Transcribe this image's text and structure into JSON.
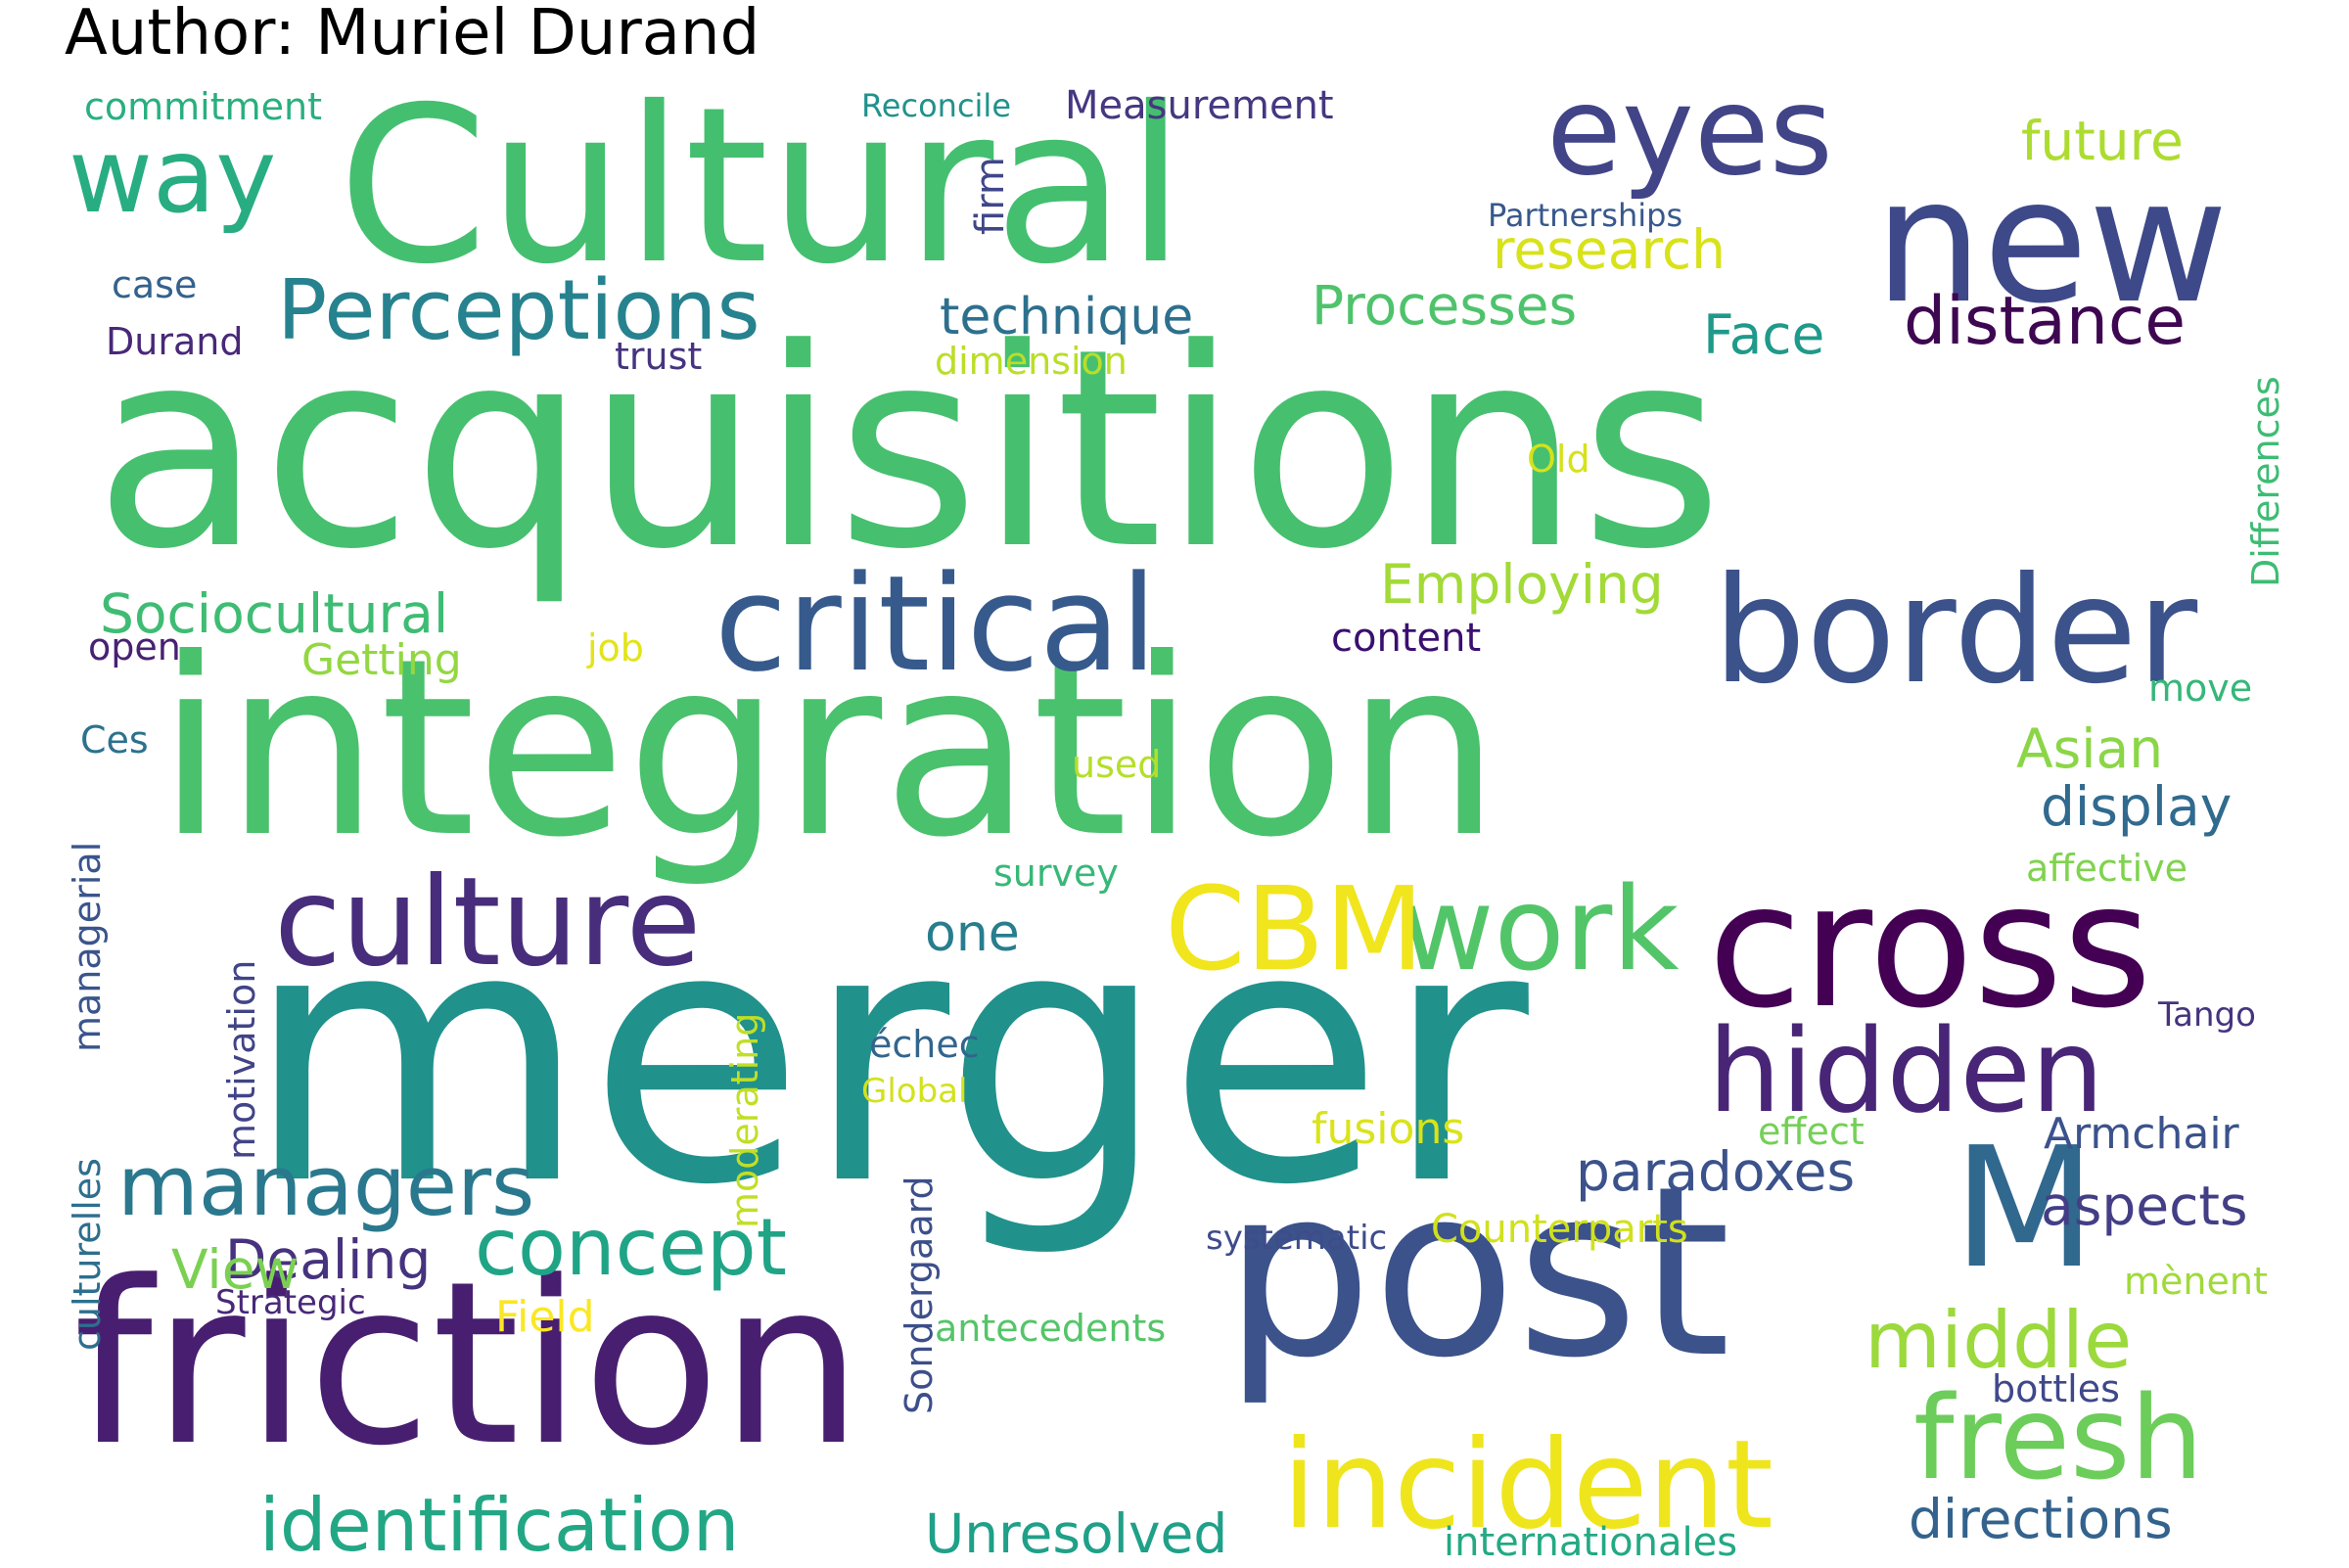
{
  "title": "Author: Muriel Durand",
  "words": [
    {
      "text": "acquisitions",
      "color": "#46c06f"
    },
    {
      "text": "merger",
      "color": "#21918c"
    },
    {
      "text": "integration",
      "color": "#4ac16d"
    },
    {
      "text": "Cultural",
      "color": "#44bf70"
    },
    {
      "text": "friction",
      "color": "#481f70"
    },
    {
      "text": "post",
      "color": "#3b528b"
    },
    {
      "text": "cross",
      "color": "#440154"
    },
    {
      "text": "new",
      "color": "#3e4989"
    },
    {
      "text": "border",
      "color": "#3b528b"
    },
    {
      "text": "eyes",
      "color": "#414487"
    },
    {
      "text": "critical",
      "color": "#375a8c"
    },
    {
      "text": "culture",
      "color": "#472d7b"
    },
    {
      "text": "M",
      "color": "#31688e"
    },
    {
      "text": "work",
      "color": "#52c569"
    },
    {
      "text": "CBM",
      "color": "#f1e51d"
    },
    {
      "text": "hidden",
      "color": "#482576"
    },
    {
      "text": "incident",
      "color": "#efe51c"
    },
    {
      "text": "fresh",
      "color": "#6ccd5a"
    },
    {
      "text": "way",
      "color": "#27ad81"
    },
    {
      "text": "Perceptions",
      "color": "#26828e"
    },
    {
      "text": "managers",
      "color": "#2a788e"
    },
    {
      "text": "concept",
      "color": "#20a486"
    },
    {
      "text": "identification",
      "color": "#22a785"
    },
    {
      "text": "middle",
      "color": "#9bd93c"
    },
    {
      "text": "distance",
      "color": "#3e0751"
    },
    {
      "text": "paradoxes",
      "color": "#3b528b"
    },
    {
      "text": "directions",
      "color": "#33638d"
    },
    {
      "text": "Unresolved",
      "color": "#1fa088"
    },
    {
      "text": "Sociocultural",
      "color": "#3fbc73"
    },
    {
      "text": "Employing",
      "color": "#a2da37"
    },
    {
      "text": "technique",
      "color": "#2d708e"
    },
    {
      "text": "Processes",
      "color": "#4ec36b"
    },
    {
      "text": "research",
      "color": "#d8e219"
    },
    {
      "text": "future",
      "color": "#addc30"
    },
    {
      "text": "Face",
      "color": "#1f9a8a"
    },
    {
      "text": "Asian",
      "color": "#8bd646"
    },
    {
      "text": "display",
      "color": "#306a8e"
    },
    {
      "text": "aspects",
      "color": "#433e85"
    },
    {
      "text": "Dealing",
      "color": "#46327e"
    },
    {
      "text": "View",
      "color": "#7ad151"
    },
    {
      "text": "one",
      "color": "#287d8e"
    },
    {
      "text": "Measurement",
      "color": "#453781"
    },
    {
      "text": "commitment",
      "color": "#29af7f"
    },
    {
      "text": "Reconcile",
      "color": "#20928c"
    },
    {
      "text": "firm",
      "color": "#3f4788"
    },
    {
      "text": "Partnerships",
      "color": "#38588c"
    },
    {
      "text": "case",
      "color": "#33628d"
    },
    {
      "text": "Durand",
      "color": "#482878"
    },
    {
      "text": "trust",
      "color": "#463480"
    },
    {
      "text": "dimension",
      "color": "#bade28"
    },
    {
      "text": "Old",
      "color": "#d5e21a"
    },
    {
      "text": "Differences",
      "color": "#3dbc74"
    },
    {
      "text": "open",
      "color": "#482173"
    },
    {
      "text": "Getting",
      "color": "#93d741"
    },
    {
      "text": "job",
      "color": "#e2e418"
    },
    {
      "text": "content",
      "color": "#3b0f70"
    },
    {
      "text": "move",
      "color": "#35b779"
    },
    {
      "text": "Ces",
      "color": "#2c728e"
    },
    {
      "text": "used",
      "color": "#b5de2b"
    },
    {
      "text": "survey",
      "color": "#37b878"
    },
    {
      "text": "affective",
      "color": "#7fd34e"
    },
    {
      "text": "managerial",
      "color": "#3a548c"
    },
    {
      "text": "motivation",
      "color": "#414487"
    },
    {
      "text": "culturelles",
      "color": "#2e6e8e"
    },
    {
      "text": "moderating",
      "color": "#c0df25"
    },
    {
      "text": "échec",
      "color": "#32658e"
    },
    {
      "text": "Global",
      "color": "#d2e21b"
    },
    {
      "text": "Sondergaard",
      "color": "#3c4f8a"
    },
    {
      "text": "Tango",
      "color": "#46337f"
    },
    {
      "text": "Armchair",
      "color": "#3b528b"
    },
    {
      "text": "effect",
      "color": "#73d056"
    },
    {
      "text": "fusions",
      "color": "#dae319"
    },
    {
      "text": "systematic",
      "color": "#3e4c8a"
    },
    {
      "text": "Counterparts",
      "color": "#d0e11c"
    },
    {
      "text": "mènent",
      "color": "#a0da39"
    },
    {
      "text": "Strategic",
      "color": "#482979"
    },
    {
      "text": "Field",
      "color": "#fbe723"
    },
    {
      "text": "antecedents",
      "color": "#54c568"
    },
    {
      "text": "bottles",
      "color": "#3f4889"
    },
    {
      "text": "internationales",
      "color": "#23a983"
    }
  ]
}
